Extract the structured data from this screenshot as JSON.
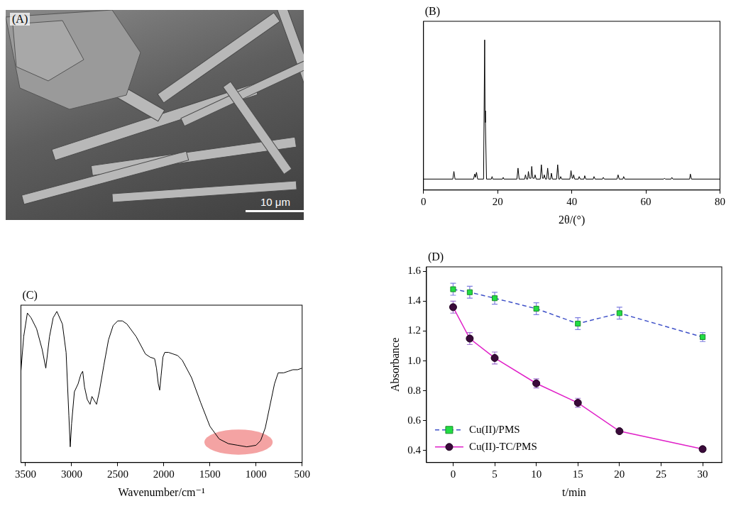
{
  "image": {
    "label": "(A)",
    "scale_bar": "10 μm"
  },
  "chart_data": [
    {
      "label": "(B)",
      "type": "line",
      "x_label": "2θ/(°)",
      "x": [
        0,
        7.9,
        8.2,
        8.5,
        13.5,
        13.8,
        14.0,
        14.3,
        14.6,
        16.2,
        16.5,
        16.6,
        16.7,
        17.0,
        18.3,
        18.5,
        18.7,
        21.3,
        21.5,
        21.7,
        25.2,
        25.5,
        25.8,
        27.3,
        27.5,
        27.8,
        28.1,
        28.3,
        28.6,
        29.0,
        29.2,
        29.5,
        29.9,
        30.1,
        30.4,
        31.5,
        31.8,
        32.1,
        32.4,
        32.6,
        32.9,
        33.2,
        33.5,
        33.8,
        34.3,
        34.5,
        34.8,
        35.9,
        36.2,
        36.5,
        36.8,
        37.0,
        37.3,
        39.5,
        39.8,
        40.1,
        40.3,
        40.5,
        40.8,
        41.8,
        42.0,
        42.3,
        43.3,
        43.5,
        43.8,
        45.8,
        46.0,
        46.3,
        48.3,
        48.5,
        48.8,
        52.2,
        52.5,
        52.8,
        53.8,
        54.0,
        54.3,
        64.8,
        65.0,
        65.3,
        66.8,
        67.0,
        67.3,
        71.8,
        72.0,
        72.3,
        80
      ],
      "values": [
        6.5,
        6.5,
        11,
        6.5,
        6.5,
        9.5,
        7.5,
        10.5,
        6.5,
        6.5,
        89,
        47,
        40,
        6.5,
        6.5,
        8,
        6.5,
        6.5,
        7.5,
        6.5,
        6.5,
        13,
        6.5,
        6.5,
        9,
        6.5,
        6.5,
        11,
        7,
        7,
        14,
        7,
        7,
        9,
        6.5,
        6.5,
        15,
        7,
        7,
        9,
        6.5,
        6.5,
        13,
        6.5,
        6.5,
        10,
        6.5,
        6.5,
        15,
        6.5,
        6.5,
        8,
        6.5,
        6.5,
        11.5,
        7,
        7,
        9,
        6.5,
        6.5,
        8,
        6.5,
        6.5,
        8.5,
        6.5,
        6.5,
        8,
        6.5,
        6.5,
        7.5,
        6.5,
        6.5,
        9,
        6.5,
        6.5,
        8,
        6.5,
        6.5,
        7,
        6.5,
        6.5,
        7.5,
        6.5,
        6.5,
        9.5,
        6.5,
        6.5
      ],
      "color": "#000000",
      "xlim": [
        0,
        80
      ],
      "xticks": [
        0,
        20,
        40,
        60,
        80
      ],
      "ylim": [
        0,
        100
      ],
      "tick_labels": "x",
      "grid": false
    },
    {
      "label": "(C)",
      "type": "line",
      "x_label": "Wavenumber/cm⁻¹",
      "x": [
        3550,
        3520,
        3480,
        3440,
        3380,
        3320,
        3280,
        3240,
        3200,
        3160,
        3100,
        3060,
        3030,
        3015,
        3000,
        2970,
        2930,
        2900,
        2880,
        2860,
        2830,
        2800,
        2780,
        2760,
        2730,
        2700,
        2650,
        2600,
        2550,
        2500,
        2450,
        2400,
        2300,
        2200,
        2150,
        2100,
        2080,
        2060,
        2045,
        2030,
        2010,
        1990,
        1950,
        1900,
        1850,
        1800,
        1700,
        1600,
        1500,
        1400,
        1300,
        1200,
        1100,
        1000,
        950,
        900,
        850,
        800,
        760,
        700,
        650,
        600,
        550,
        500
      ],
      "values": [
        58,
        80,
        95,
        92,
        85,
        72,
        60,
        80,
        92,
        96,
        88,
        70,
        30,
        10,
        25,
        45,
        50,
        56,
        58,
        48,
        40,
        37,
        42,
        40,
        37,
        45,
        62,
        78,
        87,
        90,
        90,
        88,
        80,
        69,
        67,
        66,
        60,
        50,
        46,
        55,
        67,
        70,
        70,
        69,
        68,
        65,
        54,
        38,
        23,
        15,
        12,
        11,
        10,
        11,
        14,
        22,
        36,
        50,
        57,
        57,
        58,
        59,
        59,
        60
      ],
      "color": "#000000",
      "xlim": [
        3550,
        500
      ],
      "xticks": [
        3500,
        3000,
        2500,
        2000,
        1500,
        1000,
        500
      ],
      "ylim": [
        0,
        100
      ],
      "tick_labels": "x",
      "grid": false,
      "highlight": {
        "x": [
          1560,
          820
        ],
        "y": [
          5,
          21
        ],
        "color": "#f4a3a3"
      }
    },
    {
      "label": "(D)",
      "type": "line",
      "x_label": "t/min",
      "y_label": "Absorbance",
      "x": [
        0,
        2,
        5,
        10,
        15,
        20,
        30
      ],
      "series": [
        {
          "name": "Cu(II)/PMS",
          "color": "#3f51c8",
          "marker": "square",
          "line_style": "dashed",
          "values": [
            1.48,
            1.46,
            1.42,
            1.35,
            1.25,
            1.32,
            1.16
          ],
          "errors": [
            0.04,
            0.04,
            0.04,
            0.04,
            0.04,
            0.04,
            0.03
          ]
        },
        {
          "name": "Cu(II)-TC/PMS",
          "color": "#e020c8",
          "marker": "circle",
          "line_style": "solid",
          "values": [
            1.36,
            1.15,
            1.02,
            0.85,
            0.72,
            0.53,
            0.41
          ],
          "errors": [
            0.04,
            0.04,
            0.04,
            0.03,
            0.03,
            0.01,
            0.01
          ]
        }
      ],
      "xlim": [
        -3.2,
        32.3
      ],
      "xticks": [
        0,
        5,
        10,
        15,
        20,
        25,
        30
      ],
      "ylim": [
        0.32,
        1.63
      ],
      "yticks": [
        0.4,
        0.6,
        0.8,
        {
          "value": 1,
          "label": "1.0"
        },
        1.2,
        1.4,
        1.6
      ],
      "grid": false,
      "legend": "bottom left"
    }
  ]
}
